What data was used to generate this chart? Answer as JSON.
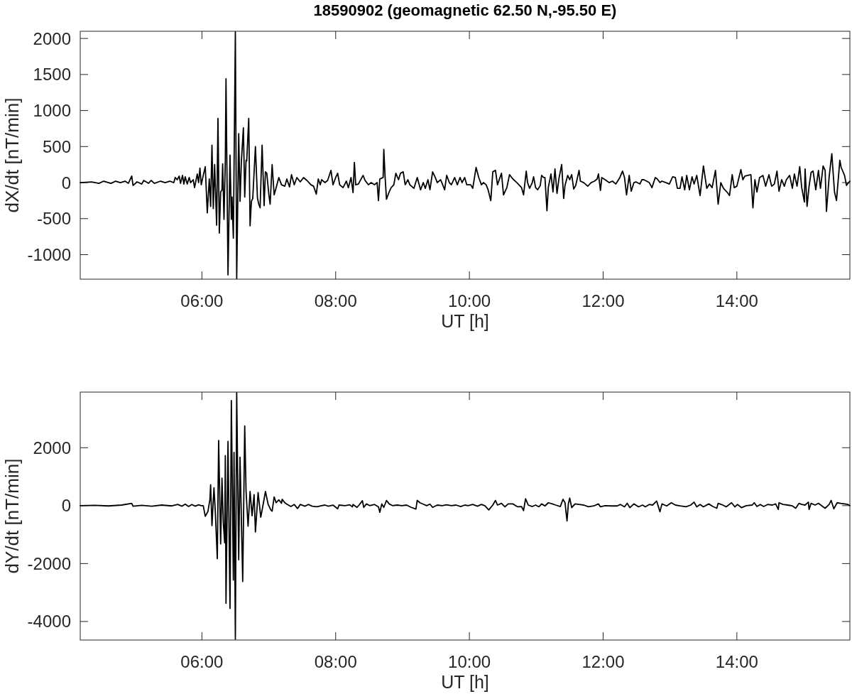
{
  "chart_data": [
    {
      "type": "line",
      "title": "18590902 (geomagnetic 62.50 N,-95.50 E)",
      "xlabel": "UT [h]",
      "ylabel": "dX/dt [nT/min]",
      "color": "#000000",
      "xlim": [
        4.18,
        15.69
      ],
      "ylim": [
        -1340,
        2100
      ],
      "xticks": [
        {
          "value": 6,
          "label": "06:00"
        },
        {
          "value": 8,
          "label": "08:00"
        },
        {
          "value": 10,
          "label": "10:00"
        },
        {
          "value": 12,
          "label": "12:00"
        },
        {
          "value": 14,
          "label": "14:00"
        }
      ],
      "yticks": [
        -1000,
        -500,
        0,
        500,
        1000,
        1500,
        2000
      ],
      "x": [
        4.18,
        4.35,
        4.46,
        4.53,
        4.64,
        4.71,
        4.78,
        4.85,
        4.9,
        4.95,
        4.97,
        5.03,
        5.1,
        5.13,
        5.2,
        5.24,
        5.29,
        5.38,
        5.45,
        5.52,
        5.58,
        5.6,
        5.63,
        5.66,
        5.68,
        5.71,
        5.73,
        5.75,
        5.78,
        5.81,
        5.83,
        5.87,
        5.89,
        5.93,
        5.95,
        5.97,
        5.99,
        6.02,
        6.05,
        6.08,
        6.11,
        6.13,
        6.15,
        6.17,
        6.19,
        6.22,
        6.24,
        6.26,
        6.28,
        6.3,
        6.31,
        6.33,
        6.35,
        6.36,
        6.39,
        6.42,
        6.44,
        6.45,
        6.47,
        6.5,
        6.52,
        6.55,
        6.57,
        6.59,
        6.62,
        6.64,
        6.66,
        6.67,
        6.7,
        6.72,
        6.74,
        6.76,
        6.8,
        6.83,
        6.85,
        6.87,
        6.9,
        6.93,
        6.95,
        6.97,
        7.0,
        7.02,
        7.05,
        7.08,
        7.11,
        7.15,
        7.19,
        7.24,
        7.27,
        7.31,
        7.34,
        7.38,
        7.42,
        7.47,
        7.52,
        7.57,
        7.63,
        7.67,
        7.71,
        7.74,
        7.77,
        7.79,
        7.84,
        7.88,
        7.93,
        7.96,
        8.0,
        8.03,
        8.06,
        8.11,
        8.16,
        8.19,
        8.23,
        8.26,
        8.28,
        8.3,
        8.34,
        8.41,
        8.44,
        8.49,
        8.53,
        8.58,
        8.62,
        8.64,
        8.66,
        8.71,
        8.72,
        8.74,
        8.76,
        8.8,
        8.83,
        8.87,
        8.9,
        8.94,
        8.97,
        9.01,
        9.04,
        9.08,
        9.11,
        9.17,
        9.22,
        9.27,
        9.31,
        9.34,
        9.38,
        9.41,
        9.45,
        9.49,
        9.52,
        9.57,
        9.63,
        9.66,
        9.7,
        9.73,
        9.78,
        9.82,
        9.86,
        9.89,
        9.93,
        9.96,
        10.02,
        10.05,
        10.1,
        10.14,
        10.18,
        10.21,
        10.25,
        10.28,
        10.32,
        10.35,
        10.39,
        10.42,
        10.48,
        10.51,
        10.56,
        10.6,
        10.65,
        10.71,
        10.78,
        10.81,
        10.85,
        10.87,
        10.9,
        10.94,
        10.96,
        10.99,
        11.02,
        11.06,
        11.08,
        11.11,
        11.13,
        11.16,
        11.18,
        11.22,
        11.25,
        11.28,
        11.31,
        11.34,
        11.38,
        11.41,
        11.43,
        11.47,
        11.5,
        11.53,
        11.56,
        11.59,
        11.64,
        11.66,
        11.71,
        11.77,
        11.82,
        11.87,
        11.91,
        11.93,
        11.96,
        11.98,
        12.03,
        12.09,
        12.14,
        12.19,
        12.25,
        12.29,
        12.32,
        12.35,
        12.39,
        12.42,
        12.46,
        12.49,
        12.55,
        12.58,
        12.61,
        12.69,
        12.73,
        12.78,
        12.81,
        12.85,
        12.88,
        12.94,
        12.99,
        13.04,
        13.08,
        13.11,
        13.15,
        13.18,
        13.22,
        13.25,
        13.29,
        13.33,
        13.36,
        13.4,
        13.45,
        13.5,
        13.55,
        13.59,
        13.63,
        13.68,
        13.72,
        13.76,
        13.8,
        13.86,
        13.89,
        13.93,
        13.96,
        14.0,
        14.06,
        14.09,
        14.12,
        14.21,
        14.24,
        14.27,
        14.3,
        14.34,
        14.39,
        14.43,
        14.48,
        14.52,
        14.56,
        14.6,
        14.63,
        14.67,
        14.71,
        14.74,
        14.79,
        14.83,
        14.86,
        14.9,
        14.94,
        14.97,
        15.01,
        15.02,
        15.05,
        15.08,
        15.11,
        15.14,
        15.18,
        15.22,
        15.25,
        15.29,
        15.32,
        15.34,
        15.38,
        15.42,
        15.46,
        15.49,
        15.54,
        15.56,
        15.61,
        15.64,
        15.67,
        15.69
      ],
      "values": [
        0,
        10,
        -10,
        20,
        -10,
        20,
        0,
        20,
        -10,
        90,
        -40,
        10,
        -20,
        30,
        -10,
        30,
        -10,
        20,
        0,
        20,
        0,
        70,
        40,
        90,
        -10,
        100,
        -20,
        80,
        -20,
        70,
        0,
        40,
        -70,
        120,
        0,
        200,
        -30,
        100,
        220,
        -420,
        50,
        -330,
        520,
        -360,
        250,
        -590,
        890,
        -700,
        -130,
        -100,
        260,
        -510,
        310,
        1440,
        -1280,
        380,
        -510,
        -200,
        -770,
        2090,
        -1330,
        680,
        -260,
        300,
        760,
        -200,
        310,
        300,
        890,
        -600,
        -260,
        -220,
        500,
        -210,
        -300,
        -350,
        520,
        -320,
        150,
        130,
        -160,
        -300,
        250,
        -170,
        -70,
        70,
        -30,
        -50,
        50,
        -60,
        110,
        -30,
        70,
        10,
        70,
        30,
        -30,
        -50,
        -160,
        50,
        -30,
        40,
        0,
        30,
        170,
        -30,
        70,
        130,
        -30,
        -70,
        20,
        -70,
        70,
        -140,
        280,
        -30,
        -20,
        100,
        30,
        -30,
        0,
        -30,
        0,
        -250,
        50,
        70,
        460,
        70,
        -230,
        -130,
        -70,
        -30,
        130,
        40,
        130,
        150,
        -30,
        40,
        -30,
        -80,
        70,
        -100,
        0,
        -80,
        40,
        -100,
        150,
        70,
        0,
        40,
        -100,
        100,
        0,
        -30,
        70,
        -30,
        70,
        0,
        70,
        -30,
        -30,
        -80,
        210,
        70,
        -30,
        0,
        -30,
        -100,
        -250,
        150,
        170,
        -30,
        130,
        -170,
        -70,
        110,
        50,
        0,
        -70,
        -170,
        160,
        0,
        -80,
        0,
        80,
        -70,
        -100,
        -40,
        100,
        70,
        70,
        -390,
        -70,
        120,
        -130,
        190,
        -150,
        60,
        250,
        -220,
        -40,
        100,
        40,
        110,
        -90,
        -40,
        170,
        20,
        0,
        -50,
        0,
        20,
        50,
        120,
        -110,
        70,
        40,
        0,
        20,
        -20,
        70,
        160,
        70,
        -170,
        100,
        -120,
        0,
        10,
        -20,
        40,
        40,
        0,
        -70,
        70,
        50,
        0,
        20,
        0,
        -20,
        80,
        70,
        -80,
        -80,
        80,
        -100,
        100,
        -100,
        80,
        -20,
        100,
        -180,
        230,
        -80,
        -20,
        -70,
        170,
        -300,
        0,
        -80,
        -140,
        -180,
        110,
        -70,
        -50,
        180,
        40,
        90,
        110,
        -350,
        40,
        -130,
        70,
        100,
        -50,
        110,
        -50,
        -20,
        160,
        -120,
        40,
        -50,
        40,
        100,
        -80,
        120,
        -50,
        220,
        -70,
        -270,
        190,
        -330,
        -50,
        140,
        160,
        -100,
        170,
        -80,
        230,
        170,
        -400,
        80,
        400,
        -130,
        -250,
        310,
        210,
        100,
        -40,
        0,
        20
      ]
    },
    {
      "type": "line",
      "xlabel": "UT [h]",
      "ylabel": "dY/dt [nT/min]",
      "color": "#000000",
      "xlim": [
        4.18,
        15.69
      ],
      "ylim": [
        -4640,
        3920
      ],
      "xticks": [
        {
          "value": 6,
          "label": "06:00"
        },
        {
          "value": 8,
          "label": "08:00"
        },
        {
          "value": 10,
          "label": "10:00"
        },
        {
          "value": 12,
          "label": "12:00"
        },
        {
          "value": 14,
          "label": "14:00"
        }
      ],
      "yticks": [
        -4000,
        -2000,
        0,
        2000
      ],
      "x": [
        4.18,
        4.4,
        4.6,
        4.8,
        4.95,
        4.97,
        5.1,
        5.25,
        5.4,
        5.55,
        5.64,
        5.7,
        5.75,
        5.8,
        5.85,
        5.9,
        5.95,
        5.99,
        6.02,
        6.05,
        6.09,
        6.12,
        6.13,
        6.15,
        6.18,
        6.2,
        6.23,
        6.25,
        6.28,
        6.3,
        6.32,
        6.34,
        6.35,
        6.36,
        6.39,
        6.42,
        6.44,
        6.47,
        6.48,
        6.5,
        6.52,
        6.55,
        6.57,
        6.61,
        6.64,
        6.66,
        6.69,
        6.72,
        6.75,
        6.78,
        6.8,
        6.84,
        6.88,
        6.92,
        6.95,
        6.99,
        7.03,
        7.05,
        7.08,
        7.11,
        7.15,
        7.19,
        7.2,
        7.24,
        7.27,
        7.33,
        7.38,
        7.43,
        7.47,
        7.54,
        7.59,
        7.65,
        7.72,
        7.79,
        7.84,
        7.89,
        7.96,
        8.03,
        8.05,
        8.14,
        8.21,
        8.25,
        8.26,
        8.32,
        8.35,
        8.4,
        8.42,
        8.46,
        8.51,
        8.58,
        8.64,
        8.66,
        8.69,
        8.72,
        8.76,
        8.8,
        8.85,
        8.92,
        8.99,
        9.06,
        9.13,
        9.2,
        9.22,
        9.26,
        9.31,
        9.36,
        9.41,
        9.45,
        9.52,
        9.59,
        9.66,
        9.73,
        9.8,
        9.87,
        9.93,
        9.98,
        10.05,
        10.12,
        10.18,
        10.23,
        10.29,
        10.35,
        10.39,
        10.42,
        10.48,
        10.53,
        10.58,
        10.65,
        10.72,
        10.78,
        10.81,
        10.84,
        10.88,
        10.94,
        10.99,
        11.04,
        11.08,
        11.13,
        11.18,
        11.24,
        11.29,
        11.36,
        11.4,
        11.43,
        11.46,
        11.48,
        11.5,
        11.53,
        11.58,
        11.64,
        11.71,
        11.78,
        11.86,
        11.93,
        11.96,
        12.03,
        12.12,
        12.21,
        12.26,
        12.32,
        12.36,
        12.4,
        12.46,
        12.53,
        12.59,
        12.63,
        12.69,
        12.74,
        12.8,
        12.85,
        12.88,
        12.95,
        13.02,
        13.08,
        13.15,
        13.24,
        13.31,
        13.36,
        13.4,
        13.45,
        13.5,
        13.58,
        13.64,
        13.7,
        13.72,
        13.79,
        13.84,
        13.92,
        13.97,
        14.01,
        14.07,
        14.14,
        14.23,
        14.26,
        14.3,
        14.35,
        14.4,
        14.46,
        14.53,
        14.58,
        14.62,
        14.63,
        14.69,
        14.76,
        14.83,
        14.88,
        14.93,
        14.97,
        15.02,
        15.07,
        15.08,
        15.11,
        15.17,
        15.22,
        15.29,
        15.32,
        15.38,
        15.41,
        15.45,
        15.5,
        15.55,
        15.61,
        15.66,
        15.69
      ],
      "values": [
        0,
        10,
        -10,
        20,
        80,
        -20,
        10,
        -20,
        20,
        -10,
        40,
        -20,
        50,
        -30,
        40,
        -20,
        30,
        0,
        0,
        -370,
        -200,
        220,
        720,
        -690,
        620,
        -200,
        -1830,
        2250,
        -1320,
        950,
        -600,
        -1280,
        1730,
        -3370,
        2220,
        -3550,
        3630,
        -2570,
        1840,
        -4610,
        3900,
        -1870,
        1670,
        -2620,
        2750,
        500,
        -710,
        490,
        -350,
        380,
        -910,
        450,
        -400,
        100,
        490,
        50,
        -150,
        -190,
        300,
        100,
        200,
        80,
        220,
        100,
        50,
        -30,
        40,
        -100,
        40,
        -20,
        40,
        -20,
        -40,
        0,
        20,
        -20,
        20,
        -110,
        20,
        0,
        30,
        -40,
        40,
        -60,
        20,
        170,
        -60,
        60,
        0,
        40,
        -40,
        -230,
        60,
        -60,
        180,
        60,
        0,
        20,
        0,
        20,
        -60,
        -120,
        180,
        100,
        50,
        0,
        50,
        -60,
        20,
        0,
        30,
        0,
        20,
        -30,
        20,
        0,
        40,
        -20,
        40,
        0,
        -150,
        20,
        180,
        20,
        80,
        -40,
        60,
        60,
        -40,
        -30,
        -170,
        240,
        20,
        -30,
        20,
        -40,
        60,
        -10,
        100,
        60,
        20,
        -30,
        220,
        100,
        -530,
        60,
        260,
        -70,
        60,
        40,
        20,
        -40,
        -10,
        60,
        -40,
        0,
        -10,
        -10,
        40,
        -40,
        80,
        -70,
        60,
        -40,
        20,
        -40,
        40,
        20,
        160,
        -210,
        60,
        -10,
        100,
        20,
        -10,
        -40,
        20,
        120,
        -40,
        40,
        -40,
        60,
        -30,
        -90,
        80,
        20,
        -40,
        100,
        -40,
        40,
        -70,
        0,
        20,
        100,
        -30,
        40,
        -30,
        40,
        20,
        60,
        -130,
        100,
        40,
        20,
        -10,
        -90,
        80,
        40,
        20,
        120,
        -130,
        80,
        20,
        80,
        -40,
        -90,
        40,
        180,
        -110,
        100,
        80,
        60,
        40,
        0
      ]
    }
  ]
}
